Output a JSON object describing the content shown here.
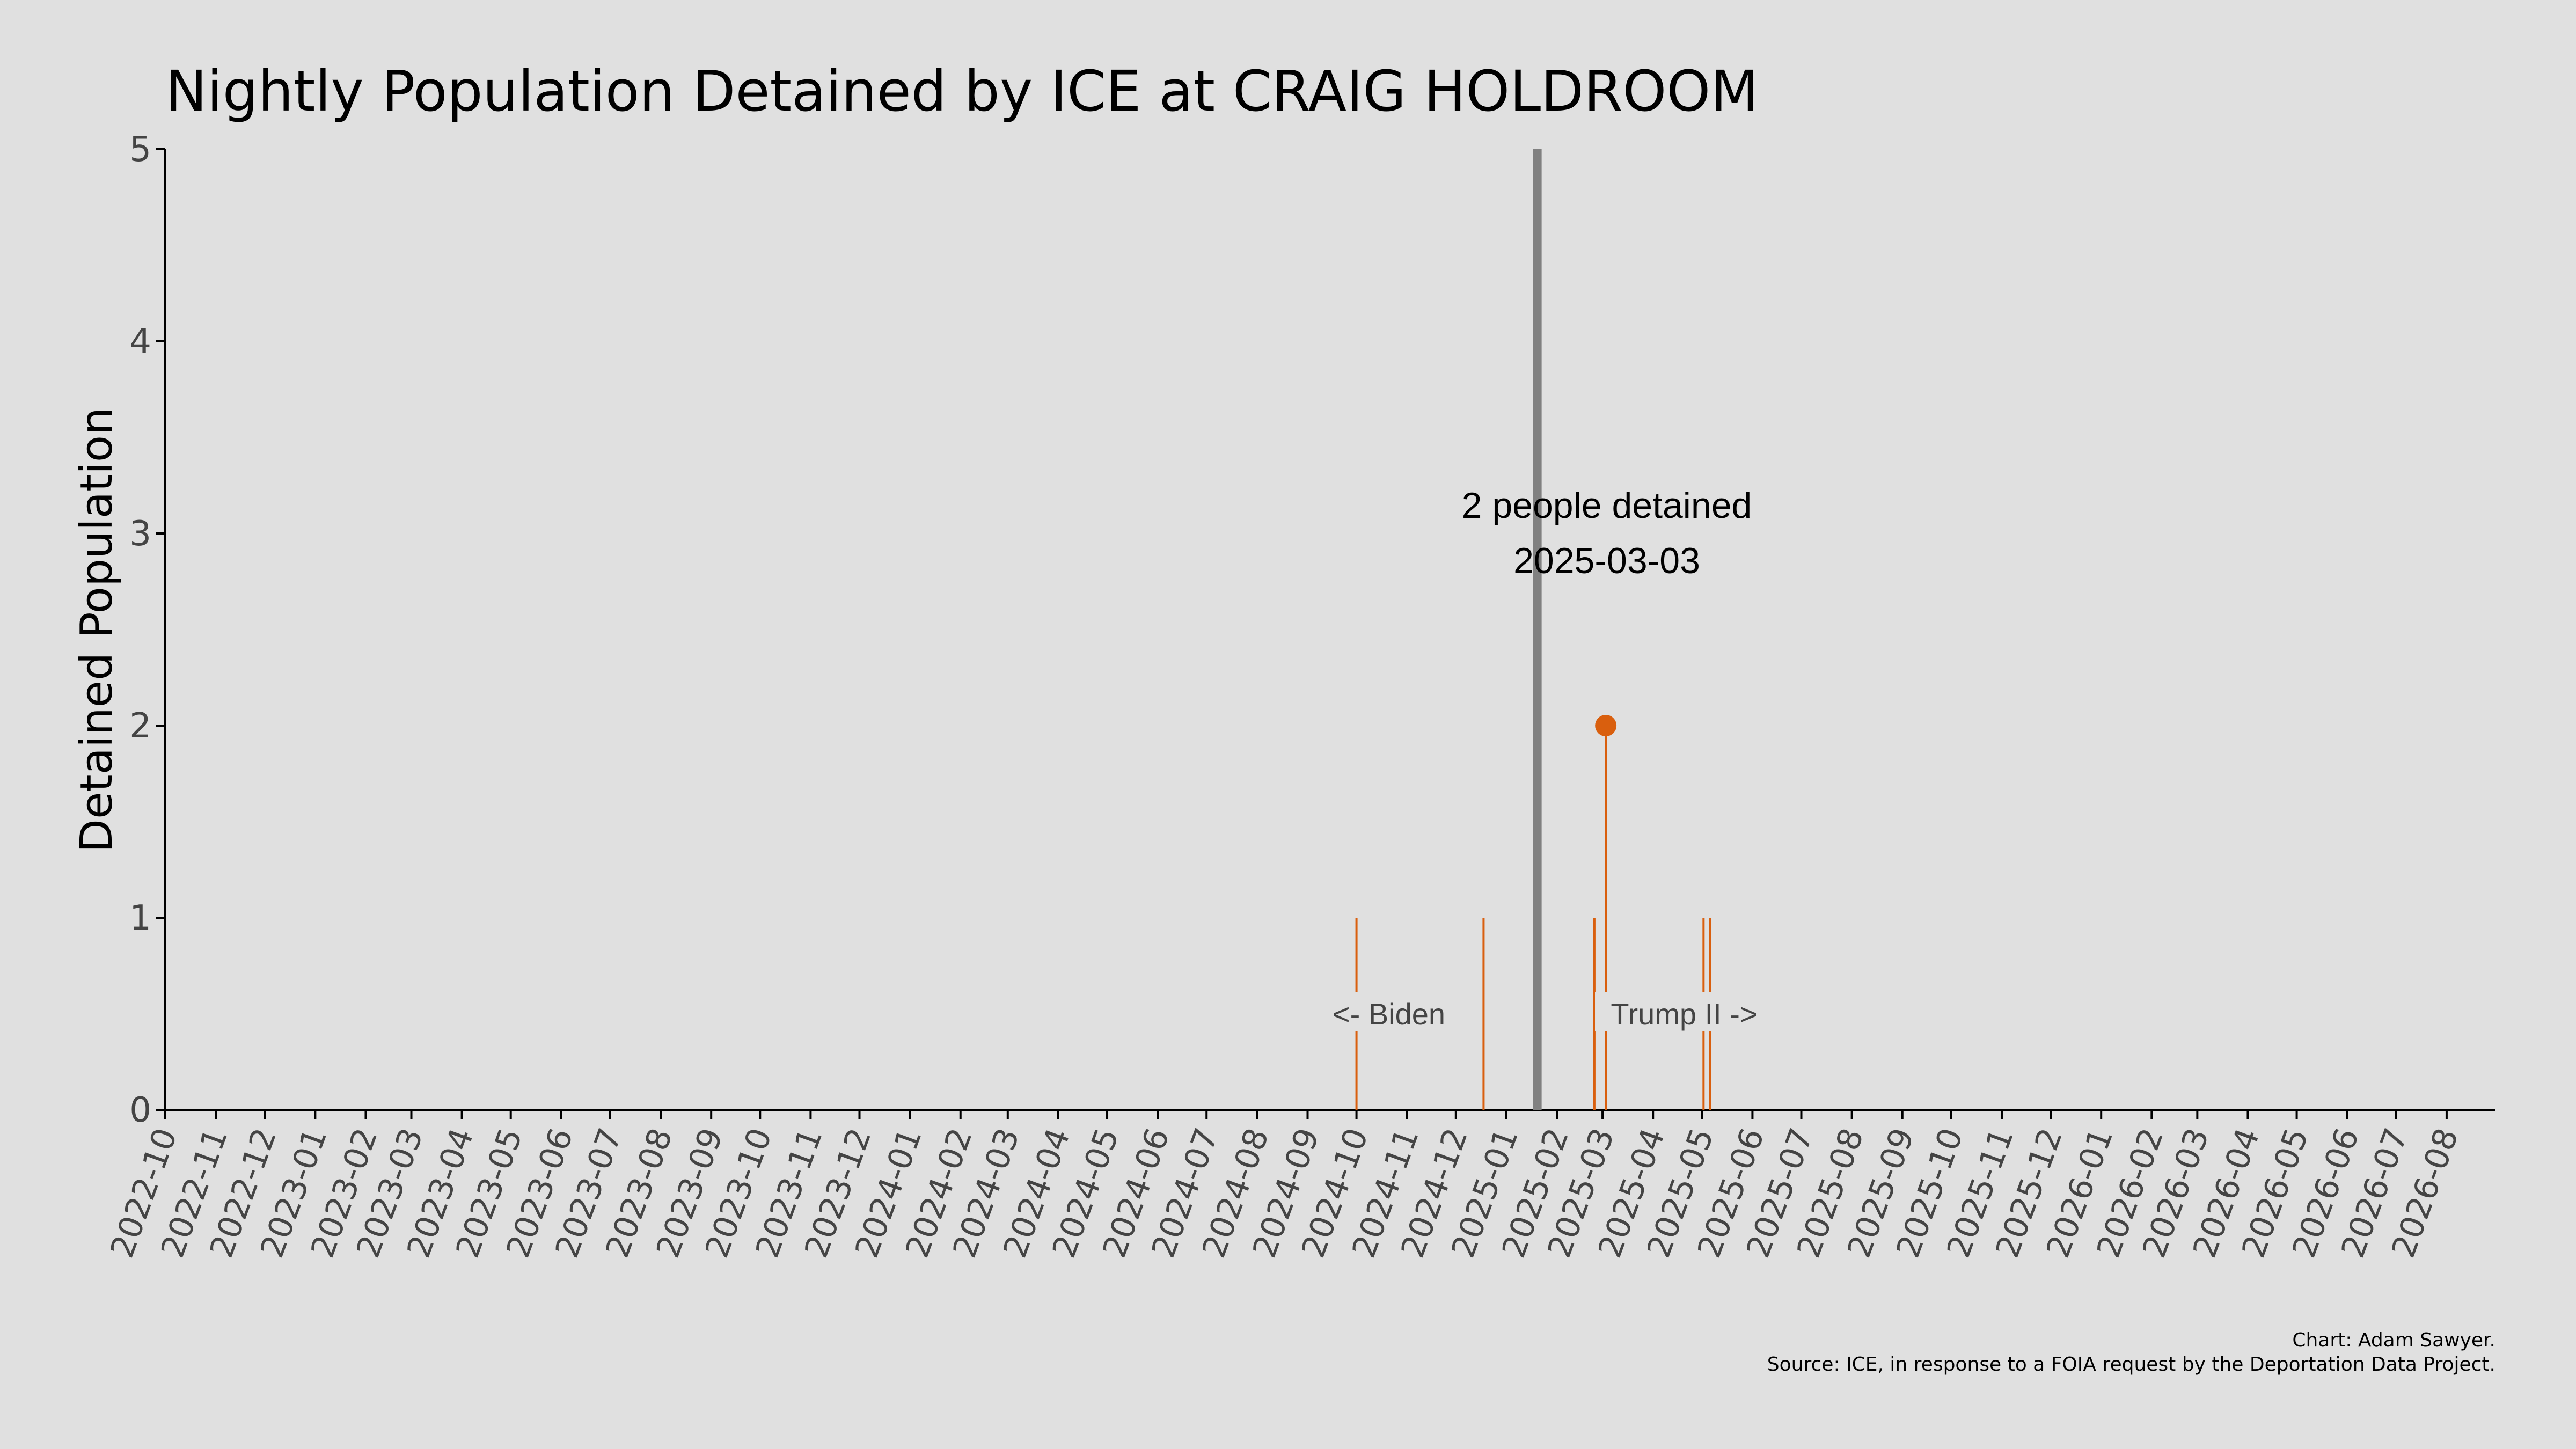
{
  "chart_data": {
    "type": "line",
    "title": "Nightly Population Detained by ICE at CRAIG HOLDROOM",
    "ylabel": "Detained Population",
    "xlabel": "",
    "ylim": [
      0,
      5
    ],
    "yticks": [
      "0",
      "1",
      "2",
      "3",
      "4",
      "5"
    ],
    "xlim": [
      "2022-10-01",
      "2026-08-31"
    ],
    "xticks": [
      "2022-10",
      "2022-11",
      "2022-12",
      "2023-01",
      "2023-02",
      "2023-03",
      "2023-04",
      "2023-05",
      "2023-06",
      "2023-07",
      "2023-08",
      "2023-09",
      "2023-10",
      "2023-11",
      "2023-12",
      "2024-01",
      "2024-02",
      "2024-03",
      "2024-04",
      "2024-05",
      "2024-06",
      "2024-07",
      "2024-08",
      "2024-09",
      "2024-10",
      "2024-11",
      "2024-12",
      "2025-01",
      "2025-02",
      "2025-03",
      "2025-04",
      "2025-05",
      "2025-06",
      "2025-07",
      "2025-08",
      "2025-09",
      "2025-10",
      "2025-11",
      "2025-12",
      "2026-01",
      "2026-02",
      "2026-03",
      "2026-04",
      "2026-05",
      "2026-06",
      "2026-07",
      "2026-08"
    ],
    "series": [
      {
        "points": [
          {
            "x": "2024-10-01",
            "y": 1
          },
          {
            "x": "2024-12-18",
            "y": 1
          },
          {
            "x": "2025-02-24",
            "y": 1
          },
          {
            "x": "2025-03-03",
            "y": 2
          },
          {
            "x": "2025-05-02",
            "y": 1
          },
          {
            "x": "2025-05-06",
            "y": 1
          }
        ],
        "color": "#d95f0e"
      }
    ],
    "highlight": {
      "x": "2025-03-03",
      "y": 2,
      "label_line1": "2 people detained",
      "label_line2": "2025-03-03"
    },
    "divider": {
      "x": "2025-01-20",
      "color": "#808080",
      "left_label": "<- Biden",
      "right_label": "Trump II ->"
    },
    "grid": false
  },
  "caption": {
    "line1": "Chart: Adam Sawyer.",
    "line2": "Source: ICE, in response to a FOIA request by the Deportation Data Project."
  }
}
